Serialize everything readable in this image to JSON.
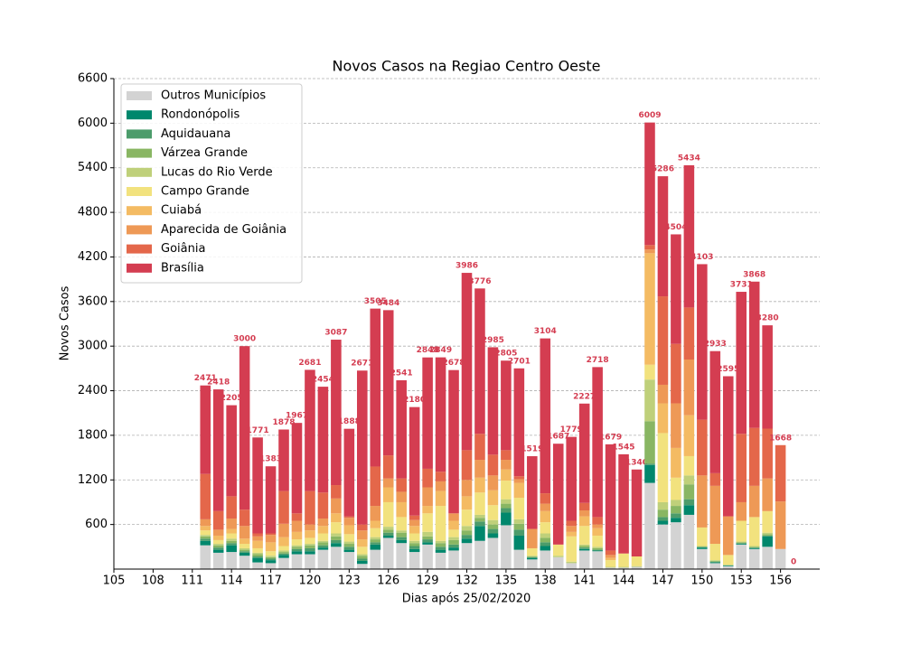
{
  "chart_data": {
    "type": "stacked_bar",
    "title": "Novos Casos na Regiao Centro Oeste",
    "xlabel": "Dias após 25/02/2020",
    "ylabel": "Novos Casos",
    "xlim": [
      105,
      159
    ],
    "xticks": [
      105,
      108,
      111,
      114,
      117,
      120,
      123,
      126,
      129,
      132,
      135,
      138,
      141,
      144,
      147,
      150,
      153,
      156
    ],
    "ylim": [
      0,
      6600
    ],
    "yticks": [
      600,
      1200,
      1800,
      2400,
      3000,
      3600,
      4200,
      4800,
      5400,
      6000,
      6600
    ],
    "grid": true,
    "legend": "upper left",
    "total_label_color": "#d43d51",
    "x": [
      112,
      113,
      114,
      115,
      116,
      117,
      118,
      119,
      120,
      121,
      122,
      123,
      124,
      125,
      126,
      127,
      128,
      129,
      130,
      131,
      132,
      133,
      134,
      135,
      136,
      137,
      138,
      139,
      140,
      141,
      142,
      143,
      144,
      145,
      146,
      147,
      148,
      149,
      150,
      151,
      152,
      153,
      154,
      155,
      156,
      157
    ],
    "totals": [
      2471,
      2418,
      2205,
      3000,
      1771,
      1383,
      1878,
      1967,
      2681,
      2454,
      3087,
      1888,
      2671,
      3505,
      3484,
      2541,
      2180,
      2848,
      2849,
      2678,
      3986,
      3776,
      2985,
      2805,
      2701,
      1519,
      3104,
      1687,
      1779,
      2227,
      2718,
      1679,
      1545,
      1340,
      6009,
      5286,
      4504,
      5434,
      4103,
      2933,
      2595,
      3731,
      3868,
      3280,
      1668,
      0
    ],
    "series": [
      {
        "name": "Outros Municípios",
        "color": "#d3d3d3",
        "values": [
          320,
          220,
          230,
          180,
          90,
          80,
          150,
          200,
          200,
          260,
          300,
          230,
          70,
          260,
          420,
          350,
          230,
          330,
          220,
          250,
          350,
          380,
          420,
          590,
          260,
          130,
          250,
          160,
          80,
          250,
          240,
          20,
          20,
          30,
          1160,
          600,
          630,
          730,
          270,
          80,
          40,
          330,
          270,
          300,
          270,
          0
        ]
      },
      {
        "name": "Rondonópolis",
        "color": "#00876c",
        "values": [
          60,
          40,
          90,
          40,
          60,
          40,
          40,
          40,
          40,
          30,
          50,
          30,
          40,
          70,
          30,
          40,
          40,
          30,
          40,
          40,
          60,
          200,
          60,
          170,
          190,
          20,
          60,
          0,
          0,
          20,
          10,
          0,
          0,
          0,
          240,
          50,
          60,
          130,
          20,
          10,
          10,
          10,
          10,
          140,
          0,
          0
        ]
      },
      {
        "name": "Aquidauana",
        "color": "#4c9c6b",
        "values": [
          30,
          30,
          30,
          20,
          20,
          20,
          20,
          30,
          40,
          30,
          40,
          40,
          30,
          30,
          40,
          40,
          40,
          40,
          40,
          40,
          50,
          60,
          60,
          60,
          80,
          10,
          50,
          0,
          0,
          20,
          10,
          0,
          0,
          0,
          20,
          50,
          60,
          80,
          10,
          10,
          0,
          10,
          10,
          10,
          0,
          0
        ]
      },
      {
        "name": "Várzea Grande",
        "color": "#89b663",
        "values": [
          30,
          30,
          30,
          20,
          30,
          20,
          20,
          30,
          40,
          40,
          50,
          40,
          40,
          40,
          40,
          60,
          40,
          40,
          50,
          60,
          60,
          50,
          60,
          60,
          80,
          10,
          60,
          0,
          0,
          20,
          20,
          0,
          0,
          0,
          570,
          100,
          100,
          200,
          0,
          10,
          0,
          10,
          10,
          20,
          0,
          0
        ]
      },
      {
        "name": "Lucas do Rio Verde",
        "color": "#bfd07a",
        "values": [
          20,
          20,
          30,
          20,
          20,
          20,
          20,
          20,
          20,
          20,
          40,
          30,
          20,
          30,
          40,
          30,
          30,
          60,
          30,
          40,
          60,
          40,
          60,
          60,
          60,
          10,
          60,
          20,
          20,
          20,
          20,
          10,
          10,
          10,
          560,
          100,
          80,
          120,
          10,
          10,
          10,
          10,
          10,
          20,
          0,
          0
        ]
      },
      {
        "name": "Campo Grande",
        "color": "#f2e27e",
        "values": [
          60,
          50,
          70,
          60,
          60,
          60,
          60,
          80,
          80,
          100,
          150,
          100,
          100,
          120,
          330,
          180,
          100,
          250,
          470,
          100,
          220,
          300,
          200,
          250,
          290,
          100,
          150,
          150,
          340,
          250,
          150,
          90,
          180,
          130,
          200,
          930,
          300,
          260,
          250,
          220,
          130,
          280,
          390,
          290,
          0,
          0
        ]
      },
      {
        "name": "Cuiabá",
        "color": "#f4bb63",
        "values": [
          60,
          60,
          60,
          70,
          100,
          120,
          120,
          100,
          100,
          100,
          120,
          120,
          100,
          100,
          200,
          200,
          100,
          100,
          200,
          120,
          180,
          200,
          200,
          150,
          200,
          0,
          150,
          0,
          60,
          130,
          100,
          30,
          0,
          0,
          1500,
          400,
          400,
          550,
          0,
          0,
          0,
          0,
          0,
          0,
          0,
          0
        ]
      },
      {
        "name": "Aparecida de Goiânia",
        "color": "#ee9956",
        "values": [
          90,
          80,
          140,
          170,
          60,
          100,
          180,
          150,
          80,
          100,
          200,
          100,
          120,
          200,
          120,
          140,
          80,
          250,
          130,
          100,
          220,
          240,
          200,
          130,
          50,
          260,
          100,
          0,
          80,
          80,
          50,
          40,
          0,
          0,
          50,
          250,
          600,
          750,
          700,
          780,
          520,
          250,
          420,
          440,
          640,
          0
        ]
      },
      {
        "name": "Goiânia",
        "color": "#e4674a",
        "values": [
          610,
          250,
          300,
          220,
          40,
          20,
          440,
          100,
          450,
          350,
          180,
          20,
          80,
          530,
          310,
          180,
          60,
          250,
          130,
          0,
          400,
          350,
          280,
          130,
          40,
          0,
          140,
          0,
          70,
          100,
          100,
          60,
          0,
          0,
          60,
          1190,
          800,
          700,
          750,
          170,
          0,
          920,
          780,
          670,
          758,
          0
        ]
      },
      {
        "name": "Brasília",
        "color": "#d43d51",
        "values": [
          1191,
          1638,
          1225,
          2200,
          1291,
          903,
          828,
          1217,
          1631,
          1424,
          1957,
          1178,
          2071,
          2125,
          1954,
          1321,
          1460,
          1498,
          1539,
          1928,
          2386,
          1956,
          1445,
          1205,
          1451,
          979,
          2084,
          1357,
          1129,
          1337,
          2018,
          1429,
          1335,
          1170,
          1649,
          1616,
          1474,
          1914,
          2093,
          1643,
          1885,
          1911,
          1968,
          1390,
          0,
          0
        ]
      }
    ]
  }
}
